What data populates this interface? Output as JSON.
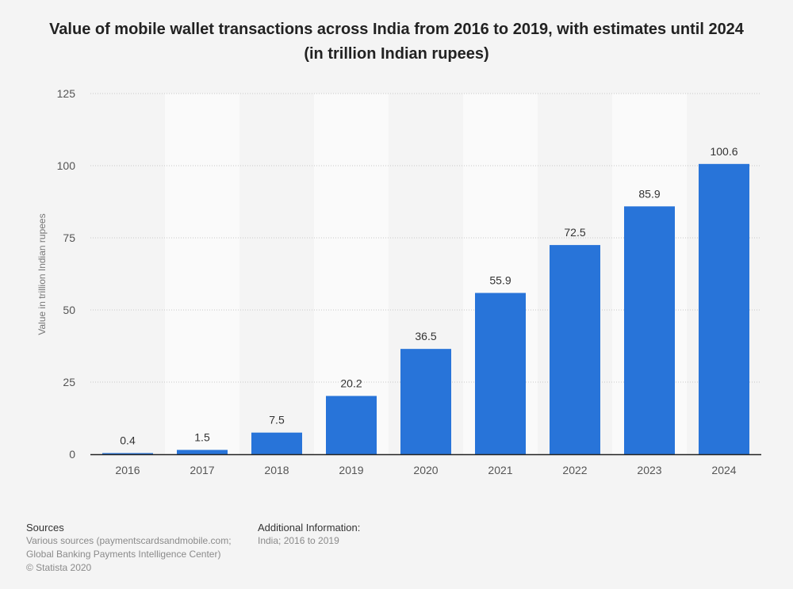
{
  "title": "Value of mobile wallet transactions across India from 2016 to 2019, with estimates until 2024 (in trillion Indian rupees)",
  "footer": {
    "sources_heading": "Sources",
    "sources_line1": "Various sources (paymentscardsandmobile.com;",
    "sources_line2": "Global Banking Payments Intelligence Center)",
    "copyright": "© Statista 2020",
    "additional_heading": "Additional Information:",
    "additional_text": "India; 2016 to 2019"
  },
  "colors": {
    "bar": "#2874d9",
    "background": "#f4f4f4",
    "band": "#fafafa"
  },
  "chart_data": {
    "type": "bar",
    "categories": [
      "2016",
      "2017",
      "2018",
      "2019",
      "2020",
      "2021",
      "2022",
      "2023",
      "2024"
    ],
    "values": [
      0.4,
      1.5,
      7.5,
      20.2,
      36.5,
      55.9,
      72.5,
      85.9,
      100.6
    ],
    "value_labels": [
      "0.4",
      "1.5",
      "7.5",
      "20.2",
      "36.5",
      "55.9",
      "72.5",
      "85.9",
      "100.6"
    ],
    "ylabel": "Value in trillion Indian rupees",
    "xlabel": "",
    "ylim": [
      0,
      125
    ],
    "yticks": [
      0,
      25,
      50,
      75,
      100,
      125
    ],
    "grid": true,
    "legend": "none"
  }
}
